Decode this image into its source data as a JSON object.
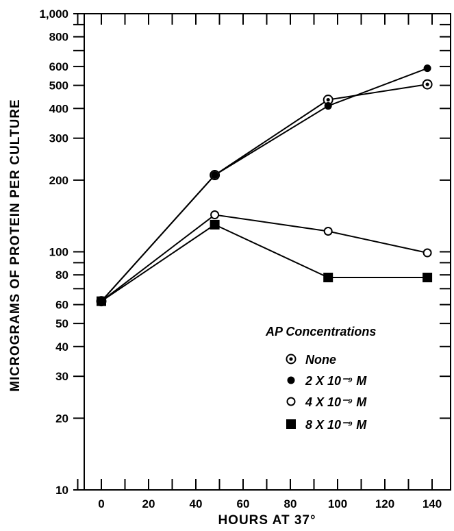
{
  "chart_data": {
    "type": "line",
    "xlabel": "HOURS AT 37°",
    "ylabel": "MICROGRAMS OF PROTEIN PER CULTURE",
    "xlim": [
      -20,
      140
    ],
    "ylim": [
      10,
      1000
    ],
    "y_scale": "log",
    "x_ticks": [
      0,
      20,
      40,
      60,
      80,
      100,
      120,
      140
    ],
    "x_tick_labels": [
      "0",
      "20",
      "40",
      "60",
      "80",
      "100",
      "120",
      "140"
    ],
    "y_ticks": [
      10,
      20,
      30,
      40,
      50,
      60,
      80,
      100,
      200,
      300,
      400,
      500,
      600,
      800,
      1000
    ],
    "y_tick_labels": [
      "10",
      "20",
      "30",
      "40",
      "50",
      "60",
      "80",
      "100",
      "200",
      "300",
      "400",
      "500",
      "600",
      "800",
      "1,000"
    ],
    "grid": false,
    "legend": {
      "title": "AP Concentrations",
      "placement": "lower-right"
    },
    "series": [
      {
        "name": "None",
        "marker": "circle-dot",
        "x": [
          0,
          48,
          96,
          138
        ],
        "y": [
          62,
          210,
          435,
          505
        ]
      },
      {
        "name": "2 X 10⁻⁹ M",
        "marker": "filled-circle",
        "x": [
          0,
          48,
          96,
          138
        ],
        "y": [
          62,
          210,
          410,
          590
        ]
      },
      {
        "name": "4 X 10⁻⁹ M",
        "marker": "open-circle",
        "x": [
          0,
          48,
          96,
          138
        ],
        "y": [
          62,
          143,
          122,
          99
        ]
      },
      {
        "name": "8 X 10⁻⁹ M",
        "marker": "filled-square",
        "x": [
          0,
          48,
          96,
          138
        ],
        "y": [
          62,
          130,
          78,
          78
        ]
      }
    ]
  }
}
